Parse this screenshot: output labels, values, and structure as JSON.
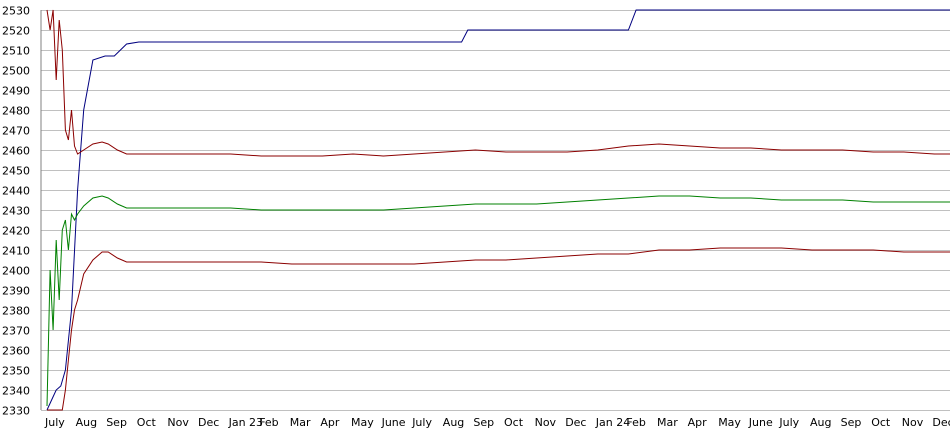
{
  "chart_data": {
    "type": "line",
    "title": "",
    "xlabel": "",
    "ylabel": "",
    "ylim": [
      2330,
      2530
    ],
    "yticks": [
      2330,
      2340,
      2350,
      2360,
      2370,
      2380,
      2390,
      2400,
      2410,
      2420,
      2430,
      2440,
      2450,
      2460,
      2470,
      2480,
      2490,
      2500,
      2510,
      2520,
      2530
    ],
    "xlim": [
      0,
      29.8
    ],
    "xticks": [
      {
        "pos": 0,
        "label": "July"
      },
      {
        "pos": 1,
        "label": "Aug"
      },
      {
        "pos": 2,
        "label": "Sep"
      },
      {
        "pos": 3,
        "label": "Oct"
      },
      {
        "pos": 4,
        "label": "Nov"
      },
      {
        "pos": 5,
        "label": "Dec"
      },
      {
        "pos": 6,
        "label": "Jan 23"
      },
      {
        "pos": 7,
        "label": "Feb"
      },
      {
        "pos": 8,
        "label": "Mar"
      },
      {
        "pos": 9,
        "label": "Apr"
      },
      {
        "pos": 10,
        "label": "May"
      },
      {
        "pos": 11,
        "label": "June"
      },
      {
        "pos": 12,
        "label": "July"
      },
      {
        "pos": 13,
        "label": "Aug"
      },
      {
        "pos": 14,
        "label": "Sep"
      },
      {
        "pos": 15,
        "label": "Oct"
      },
      {
        "pos": 16,
        "label": "Nov"
      },
      {
        "pos": 17,
        "label": "Dec"
      },
      {
        "pos": 18,
        "label": "Jan 24"
      },
      {
        "pos": 19,
        "label": "Feb"
      },
      {
        "pos": 20,
        "label": "Mar"
      },
      {
        "pos": 21,
        "label": "Apr"
      },
      {
        "pos": 22,
        "label": "May"
      },
      {
        "pos": 23,
        "label": "June"
      },
      {
        "pos": 24,
        "label": "July"
      },
      {
        "pos": 25,
        "label": "Aug"
      },
      {
        "pos": 26,
        "label": "Sep"
      },
      {
        "pos": 27,
        "label": "Oct"
      },
      {
        "pos": 28,
        "label": "Nov"
      },
      {
        "pos": 29,
        "label": "Dec"
      }
    ],
    "grid": true,
    "series": [
      {
        "color": "#000080",
        "x": [
          0,
          0.15,
          0.3,
          0.45,
          0.6,
          0.8,
          1.0,
          1.2,
          1.5,
          1.9,
          2.2,
          2.6,
          3,
          6,
          9,
          13.55,
          13.75,
          17,
          19.0,
          19.25,
          25,
          29.8
        ],
        "y": [
          2330,
          2335,
          2340,
          2342,
          2350,
          2380,
          2440,
          2480,
          2505,
          2507,
          2507,
          2513,
          2514,
          2514,
          2514,
          2514,
          2520,
          2520,
          2520,
          2530,
          2530,
          2530
        ]
      },
      {
        "color": "#8b0000",
        "x": [
          0,
          0.1,
          0.2,
          0.3,
          0.4,
          0.5,
          0.6,
          0.7,
          0.8,
          0.9,
          1.0,
          1.2,
          1.5,
          1.8,
          2.0,
          2.3,
          2.6,
          3,
          4,
          5,
          6,
          7,
          8,
          9,
          10,
          11,
          12,
          13,
          14,
          15,
          16,
          17,
          18,
          19,
          20,
          21,
          22,
          23,
          24,
          25,
          26,
          27,
          28,
          29,
          29.8
        ],
        "y": [
          2530,
          2520,
          2530,
          2495,
          2525,
          2510,
          2470,
          2465,
          2480,
          2462,
          2458,
          2460,
          2463,
          2464,
          2463,
          2460,
          2458,
          2458,
          2458,
          2458,
          2458,
          2457,
          2457,
          2457,
          2458,
          2457,
          2458,
          2459,
          2460,
          2459,
          2459,
          2459,
          2460,
          2462,
          2463,
          2462,
          2461,
          2461,
          2460,
          2460,
          2460,
          2459,
          2459,
          2458,
          2458
        ]
      },
      {
        "color": "#008000",
        "x": [
          0,
          0.1,
          0.2,
          0.3,
          0.4,
          0.5,
          0.6,
          0.7,
          0.8,
          0.9,
          1.0,
          1.2,
          1.5,
          1.8,
          2.0,
          2.3,
          2.6,
          3,
          4,
          5,
          6,
          7,
          8,
          9,
          10,
          11,
          12,
          13,
          14,
          15,
          16,
          17,
          18,
          19,
          20,
          21,
          22,
          23,
          24,
          25,
          26,
          27,
          28,
          29,
          29.8
        ],
        "y": [
          2332,
          2400,
          2370,
          2415,
          2385,
          2420,
          2425,
          2410,
          2428,
          2425,
          2428,
          2432,
          2436,
          2437,
          2436,
          2433,
          2431,
          2431,
          2431,
          2431,
          2431,
          2430,
          2430,
          2430,
          2430,
          2430,
          2431,
          2432,
          2433,
          2433,
          2433,
          2434,
          2435,
          2436,
          2437,
          2437,
          2436,
          2436,
          2435,
          2435,
          2435,
          2434,
          2434,
          2434,
          2434
        ]
      },
      {
        "color": "#8b0000",
        "x": [
          0,
          0.3,
          0.5,
          0.6,
          0.7,
          0.8,
          0.9,
          1.0,
          1.2,
          1.5,
          1.8,
          2.0,
          2.3,
          2.6,
          3,
          4,
          5,
          6,
          7,
          8,
          9,
          10,
          11,
          12,
          13,
          14,
          15,
          16,
          17,
          18,
          19,
          20,
          21,
          22,
          23,
          24,
          25,
          26,
          27,
          28,
          29,
          29.8
        ],
        "y": [
          2330,
          2330,
          2330,
          2340,
          2355,
          2370,
          2380,
          2385,
          2398,
          2405,
          2409,
          2409,
          2406,
          2404,
          2404,
          2404,
          2404,
          2404,
          2404,
          2403,
          2403,
          2403,
          2403,
          2403,
          2404,
          2405,
          2405,
          2406,
          2407,
          2408,
          2408,
          2410,
          2410,
          2411,
          2411,
          2411,
          2410,
          2410,
          2410,
          2409,
          2409,
          2409
        ]
      }
    ]
  }
}
